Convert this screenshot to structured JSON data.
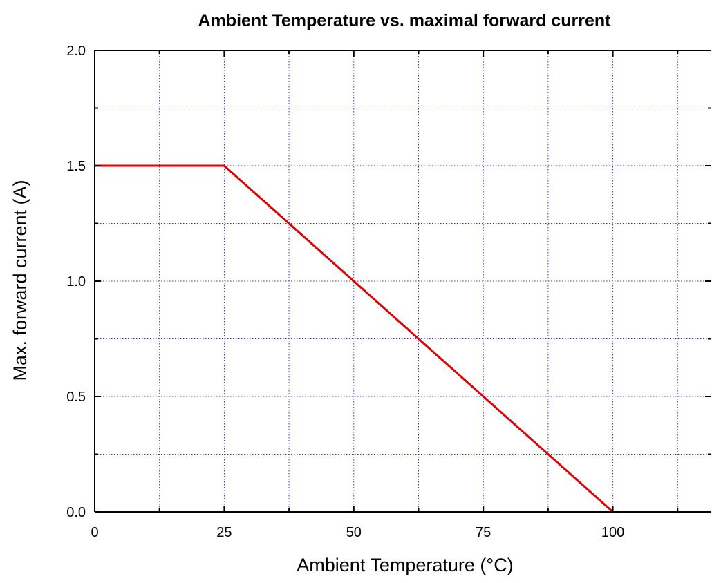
{
  "chart_data": {
    "type": "line",
    "title": "Ambient Temperature vs. maximal forward current",
    "xlabel": "Ambient Temperature (°C)",
    "ylabel": "Max. forward current (A)",
    "xlim": [
      0,
      119
    ],
    "ylim": [
      0,
      2.0
    ],
    "x_ticks": [
      0,
      25,
      50,
      75,
      100
    ],
    "x_tick_labels": [
      "0",
      "25",
      "50",
      "75",
      "100"
    ],
    "x_minor_ticks": [
      12.5,
      37.5,
      62.5,
      87.5,
      112.5
    ],
    "y_ticks": [
      0,
      0.5,
      1.0,
      1.5,
      2.0
    ],
    "y_tick_labels": [
      "0.0",
      "0.5",
      "1.0",
      "1.5",
      "2.0"
    ],
    "y_minor_ticks": [
      0.25,
      0.75,
      1.25,
      1.75
    ],
    "grid": true,
    "grid_color": "#3333cc",
    "series": [
      {
        "color": "#e00000",
        "x": [
          0,
          25,
          100
        ],
        "y": [
          1.5,
          1.5,
          0
        ]
      }
    ]
  }
}
